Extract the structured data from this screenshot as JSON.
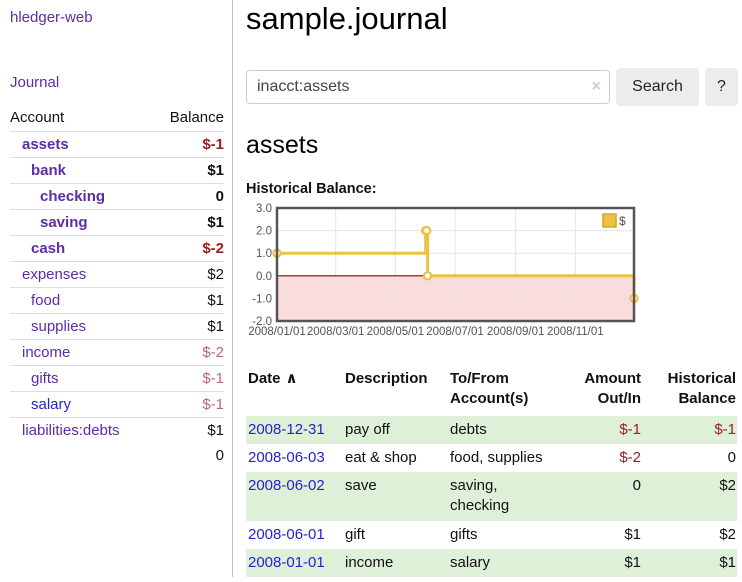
{
  "app": {
    "brand": "hledger-web"
  },
  "sidebar": {
    "nav": {
      "journal": "Journal"
    },
    "accounts": {
      "headers": [
        "Account",
        "Balance"
      ],
      "rows": [
        {
          "name": "assets",
          "balance": "$-1",
          "indent": 1,
          "emph": true,
          "balance_style": "neg-strong",
          "link_style": "purple"
        },
        {
          "name": "bank",
          "balance": "$1",
          "indent": 2,
          "emph": true,
          "balance_style": "normal",
          "link_style": "purple"
        },
        {
          "name": "checking",
          "balance": "0",
          "indent": 3,
          "emph": true,
          "balance_style": "normal",
          "link_style": "purple"
        },
        {
          "name": "saving",
          "balance": "$1",
          "indent": 3,
          "emph": true,
          "balance_style": "normal",
          "link_style": "purple"
        },
        {
          "name": "cash",
          "balance": "$-2",
          "indent": 2,
          "emph": true,
          "balance_style": "neg-strong",
          "link_style": "purple"
        },
        {
          "name": "expenses",
          "balance": "$2",
          "indent": 1,
          "emph": false,
          "balance_style": "normal",
          "link_style": "purple"
        },
        {
          "name": "food",
          "balance": "$1",
          "indent": 2,
          "emph": false,
          "balance_style": "normal",
          "link_style": "purple"
        },
        {
          "name": "supplies",
          "balance": "$1",
          "indent": 2,
          "emph": false,
          "balance_style": "normal",
          "link_style": "purple"
        },
        {
          "name": "income",
          "balance": "$-2",
          "indent": 1,
          "emph": false,
          "balance_style": "neg-soft",
          "link_style": "purple"
        },
        {
          "name": "gifts",
          "balance": "$-1",
          "indent": 2,
          "emph": false,
          "balance_style": "neg-soft",
          "link_style": "purple"
        },
        {
          "name": "salary",
          "balance": "$-1",
          "indent": 2,
          "emph": false,
          "balance_style": "neg-soft",
          "link_style": "blue"
        },
        {
          "name": "liabilities:debts",
          "balance": "$1",
          "indent": 1,
          "emph": false,
          "balance_style": "normal",
          "link_style": "purple"
        }
      ],
      "total": "0"
    }
  },
  "main": {
    "title": "sample.journal",
    "search": {
      "value": "inacct:assets",
      "clear_icon": "×",
      "search_button": "Search",
      "help_button": "?"
    },
    "account_heading": "assets",
    "section_label": "Historical Balance:",
    "register": {
      "headers": [
        "Date",
        "Description",
        "To/From Account(s)",
        "Amount Out/In",
        "Historical Balance"
      ],
      "sort_ascending_icon": "∧",
      "rows": [
        {
          "date": "2008-12-31",
          "description": "pay off",
          "accounts": "debts",
          "amount": "$-1",
          "amount_negative": true,
          "balance": "$-1",
          "balance_negative": true
        },
        {
          "date": "2008-06-03",
          "description": "eat & shop",
          "accounts": "food, supplies",
          "amount": "$-2",
          "amount_negative": true,
          "balance": "0",
          "balance_negative": false
        },
        {
          "date": "2008-06-02",
          "description": "save",
          "accounts": "saving, checking",
          "amount": "0",
          "amount_negative": false,
          "balance": "$2",
          "balance_negative": false
        },
        {
          "date": "2008-06-01",
          "description": "gift",
          "accounts": "gifts",
          "amount": "$1",
          "amount_negative": false,
          "balance": "$2",
          "balance_negative": false
        },
        {
          "date": "2008-01-01",
          "description": "income",
          "accounts": "salary",
          "amount": "$1",
          "amount_negative": false,
          "balance": "$1",
          "balance_negative": false
        }
      ]
    }
  },
  "chart_data": {
    "type": "line",
    "title": "Historical Balance:",
    "series": [
      {
        "name": "$",
        "color": "#edc240",
        "step": true,
        "points": [
          {
            "x": "2008-01-01",
            "y": 1
          },
          {
            "x": "2008-06-01",
            "y": 2
          },
          {
            "x": "2008-06-02",
            "y": 2
          },
          {
            "x": "2008-06-03",
            "y": 0
          },
          {
            "x": "2008-12-31",
            "y": -1
          }
        ]
      }
    ],
    "xlim": [
      "2008-01-01",
      "2008-12-31"
    ],
    "ylim": [
      -2,
      3
    ],
    "x_ticks": [
      "2008/01/01",
      "2008/03/01",
      "2008/05/01",
      "2008/07/01",
      "2008/09/01",
      "2008/11/01"
    ],
    "y_ticks": [
      "3.0",
      "2.0",
      "1.0",
      "0.0",
      "-1.0",
      "-2.0"
    ],
    "legend": {
      "label": "$",
      "position": "top-right"
    },
    "grid": true,
    "axis_text_color": "#545454",
    "plot_border_color": "#545454",
    "zero_line_color": "#8b0000",
    "negative_region_color": "#fbdcdc"
  },
  "colors": {
    "link_purple": "#5e2ca5",
    "link_blue": "#2323d1",
    "negative_strong": "#9d1c20",
    "negative_soft": "#b5696e",
    "row_green": "#dff0d8",
    "series_gold": "#edc240",
    "button_gray": "#ececec"
  }
}
